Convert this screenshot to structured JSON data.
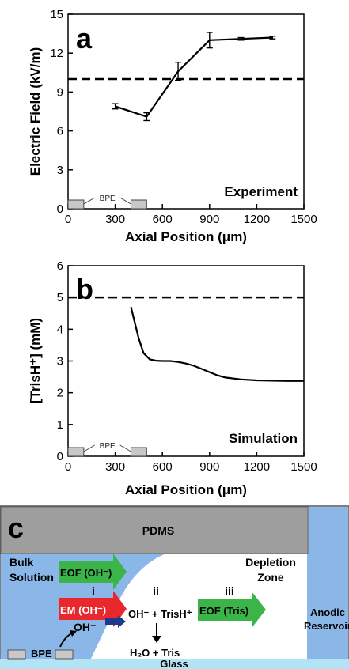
{
  "chart_data": [
    {
      "type": "line",
      "panel_label": "a",
      "annotation": "Experiment",
      "xlabel": "Axial Position (μm)",
      "ylabel": "Electric Field (kV/m)",
      "xlim": [
        0,
        1500
      ],
      "ylim": [
        0,
        15
      ],
      "xticks": [
        "0",
        "300",
        "600",
        "900",
        "1200",
        "1500"
      ],
      "yticks": [
        "0",
        "3",
        "6",
        "9",
        "12",
        "15"
      ],
      "series": [
        {
          "x": [
            300,
            500,
            700,
            900,
            1100,
            1300
          ],
          "y": [
            7.9,
            7.1,
            10.6,
            13.0,
            13.1,
            13.2
          ],
          "error": [
            0.2,
            0.3,
            0.7,
            0.6,
            0.1,
            0.1
          ]
        }
      ],
      "reference_line_y": 10,
      "bpe_label": "BPE",
      "bpe_x": [
        [
          0,
          100
        ],
        [
          400,
          500
        ]
      ],
      "grid": false
    },
    {
      "type": "line",
      "panel_label": "b",
      "annotation": "Simulation",
      "xlabel": "Axial Position (μm)",
      "ylabel": "[TrisH⁺] (mM)",
      "xlim": [
        0,
        1500
      ],
      "ylim": [
        0,
        6
      ],
      "xticks": [
        "0",
        "300",
        "600",
        "900",
        "1200",
        "1500"
      ],
      "yticks": [
        "0",
        "1",
        "2",
        "3",
        "4",
        "5",
        "6"
      ],
      "series": [
        {
          "x": [
            400,
            420,
            450,
            480,
            520,
            560,
            600,
            650,
            700,
            750,
            800,
            850,
            900,
            950,
            1000,
            1100,
            1200,
            1300,
            1400,
            1500
          ],
          "y": [
            4.7,
            4.3,
            3.7,
            3.25,
            3.05,
            3.01,
            3.0,
            3.0,
            2.97,
            2.92,
            2.85,
            2.75,
            2.65,
            2.55,
            2.48,
            2.42,
            2.39,
            2.38,
            2.37,
            2.37
          ]
        }
      ],
      "reference_line_y": 5,
      "bpe_label": "BPE",
      "bpe_x": [
        [
          0,
          100
        ],
        [
          400,
          500
        ]
      ],
      "grid": false
    }
  ],
  "schematic": {
    "panel_label": "c",
    "pdms": "PDMS",
    "glass": "Glass",
    "bulk": "Bulk Solution",
    "bulk_lines": [
      "Bulk",
      "Solution"
    ],
    "depletion_lines": [
      "Depletion",
      "Zone"
    ],
    "anodic_lines": [
      "Anodic",
      "Reservoir"
    ],
    "bpe": "BPE",
    "roman": [
      "i",
      "ii",
      "iii"
    ],
    "eof_oh": "EOF (OH⁻)",
    "em_oh": "EM (OH⁻)",
    "eof_tris": "EOF (Tris)",
    "oh_minus": "OH⁻",
    "reaction": "OH⁻ + TrisH⁺",
    "products": "H₂O + Tris",
    "colors": {
      "pdms": "#9e9e9e",
      "bulk_blue": "#8bb6e8",
      "anodic_blue": "#8bb6e8",
      "glass": "#b3e4f5",
      "eof_green": "#3bb54a",
      "em_red": "#e8282c",
      "oh_arrow": "#1f3a8a"
    }
  }
}
